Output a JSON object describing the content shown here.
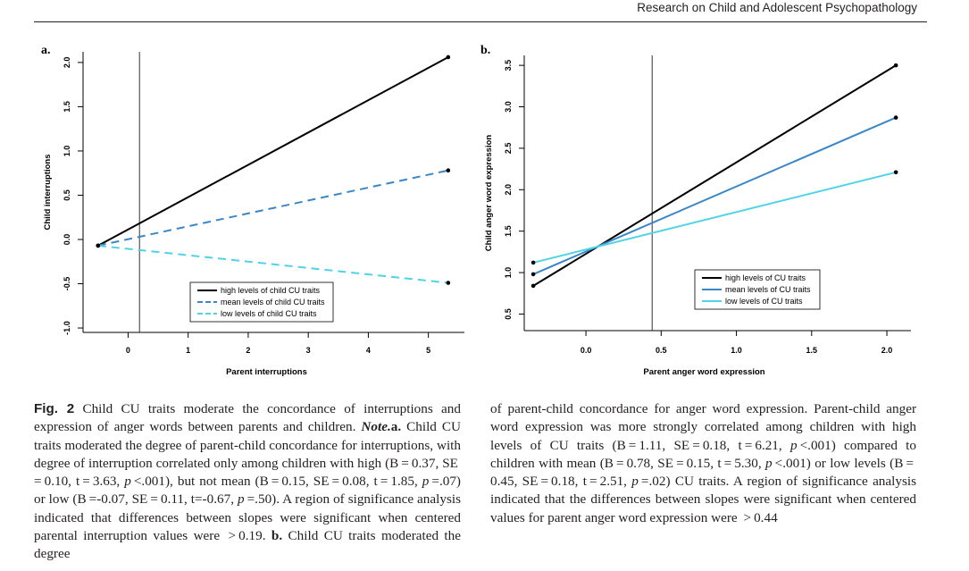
{
  "header": {
    "journal": "Research on Child and Adolescent Psychopathology"
  },
  "chart_data": [
    {
      "panel": "a.",
      "type": "line",
      "xlabel": "Parent interruptions",
      "ylabel": "Child interruptions",
      "xlim": [
        -0.75,
        5.6
      ],
      "ylim": [
        -1.05,
        2.12
      ],
      "xticks": [
        "0",
        "1",
        "2",
        "3",
        "4",
        "5"
      ],
      "yticks": [
        "-1.0",
        "-0.5",
        "0.0",
        "0.5",
        "1.0",
        "1.5",
        "2.0"
      ],
      "vline": 0.19,
      "legend_position": "bottom-center",
      "series": [
        {
          "name": "high levels of child CU traits",
          "color": "#000000",
          "dash": "solid",
          "points": [
            [
              -0.5,
              -0.07
            ],
            [
              5.33,
              2.06
            ]
          ]
        },
        {
          "name": "mean levels of child CU traits",
          "color": "#3a87c8",
          "dash": "dashed",
          "points": [
            [
              -0.5,
              -0.07
            ],
            [
              5.33,
              0.78
            ]
          ]
        },
        {
          "name": "low levels of child CU traits",
          "color": "#4fd3e6",
          "dash": "dashed",
          "points": [
            [
              -0.5,
              -0.07
            ],
            [
              5.33,
              -0.49
            ]
          ]
        }
      ]
    },
    {
      "panel": "b.",
      "type": "line",
      "xlabel": "Parent anger word expression",
      "ylabel": "Child anger word expression",
      "xlim": [
        -0.41,
        2.16
      ],
      "ylim": [
        0.3,
        3.62
      ],
      "xticks": [
        "0.0",
        "0.5",
        "1.0",
        "1.5",
        "2.0"
      ],
      "yticks": [
        "0.5",
        "1.0",
        "1.5",
        "2.0",
        "2.5",
        "3.0",
        "3.5"
      ],
      "vline": 0.44,
      "legend_position": "right",
      "series": [
        {
          "name": "high levels of CU traits",
          "color": "#000000",
          "dash": "solid",
          "points": [
            [
              -0.35,
              0.84
            ],
            [
              2.06,
              3.5
            ]
          ]
        },
        {
          "name": "mean levels of CU traits",
          "color": "#3a87c8",
          "dash": "solid",
          "points": [
            [
              -0.35,
              0.98
            ],
            [
              2.06,
              2.87
            ]
          ]
        },
        {
          "name": "low levels of CU traits",
          "color": "#4fd3e6",
          "dash": "solid",
          "points": [
            [
              -0.35,
              1.12
            ],
            [
              2.06,
              2.21
            ]
          ]
        }
      ]
    }
  ],
  "caption": {
    "fig_label": "Fig. 2",
    "left_intro": " Child CU traits moderate the concordance of interruptions and expression of anger words between parents and children. ",
    "note_label": "Note.",
    "a_label": "a.",
    "left_body_1": " Child CU traits moderated the degree of parent-child concordance for interruptions, with degree of interruption correlated only among children with high (B = 0.37, SE = 0.10, t = 3.63, ",
    "p1": "p",
    "left_body_2": " <.001), but not mean (B = 0.15, SE = 0.08, t = 1.85, ",
    "p2": "p",
    "left_body_3": " =.07) or low (B =-0.07, SE = 0.11, t=-0.67, ",
    "p3": "p",
    "left_body_4": " =.50). A region of significance analysis indicated that differences between slopes were significant when centered parental interruption values were  > 0.19. ",
    "b_label": "b.",
    "left_body_5": " Child CU traits moderated the degree",
    "right_1": "of parent-child concordance for anger word expression. Parent-child anger word expression was more strongly correlated among children with high levels of CU traits (B = 1.11, SE = 0.18, t = 6.21, ",
    "p4": "p",
    "right_2": " <.001) compared to children with mean (B = 0.78, SE = 0.15, t = 5.30, ",
    "p5": "p",
    "right_3": " <.001) or low levels (B = 0.45, SE = 0.18, t = 2.51, ",
    "p6": "p",
    "right_4": " =.02) CU traits. A region of significance analysis indicated that the differences between slopes were significant when centered values for parent anger word expression were  > 0.44"
  }
}
